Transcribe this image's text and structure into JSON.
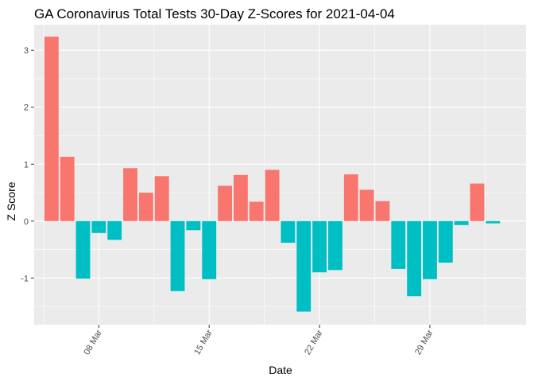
{
  "chart_data": {
    "type": "bar",
    "title": "GA Coronavirus Total Tests 30-Day Z-Scores for 2021-04-04",
    "xlabel": "Date",
    "ylabel": "Z Score",
    "ylim": [
      -1.82,
      3.45
    ],
    "yticks": [
      -1,
      0,
      1,
      2,
      3
    ],
    "grid": true,
    "legend": "none",
    "colors": {
      "positive": "#F8766D",
      "negative": "#00BFC4",
      "panel": "#EBEBEB",
      "grid": "#FFFFFF"
    },
    "x_ticks": [
      {
        "label": "08 Mar",
        "date": "2021-03-08"
      },
      {
        "label": "15 Mar",
        "date": "2021-03-15"
      },
      {
        "label": "22 Mar",
        "date": "2021-03-22"
      },
      {
        "label": "29 Mar",
        "date": "2021-03-29"
      }
    ],
    "x": [
      "2021-03-05",
      "2021-03-06",
      "2021-03-07",
      "2021-03-08",
      "2021-03-09",
      "2021-03-10",
      "2021-03-11",
      "2021-03-12",
      "2021-03-13",
      "2021-03-14",
      "2021-03-15",
      "2021-03-16",
      "2021-03-17",
      "2021-03-18",
      "2021-03-19",
      "2021-03-20",
      "2021-03-21",
      "2021-03-22",
      "2021-03-23",
      "2021-03-24",
      "2021-03-25",
      "2021-03-26",
      "2021-03-27",
      "2021-03-28",
      "2021-03-29",
      "2021-03-30",
      "2021-03-31",
      "2021-04-01",
      "2021-04-02",
      "2021-04-03"
    ],
    "values": [
      3.24,
      1.13,
      -1.01,
      -0.21,
      -0.33,
      0.93,
      0.5,
      0.79,
      -1.23,
      -0.16,
      -1.02,
      0.62,
      0.81,
      0.34,
      0.9,
      -0.38,
      -1.59,
      -0.9,
      -0.86,
      0.82,
      0.55,
      0.35,
      -0.84,
      -1.32,
      -1.02,
      -0.73,
      -0.07,
      0.66,
      -0.04,
      0.0
    ]
  }
}
